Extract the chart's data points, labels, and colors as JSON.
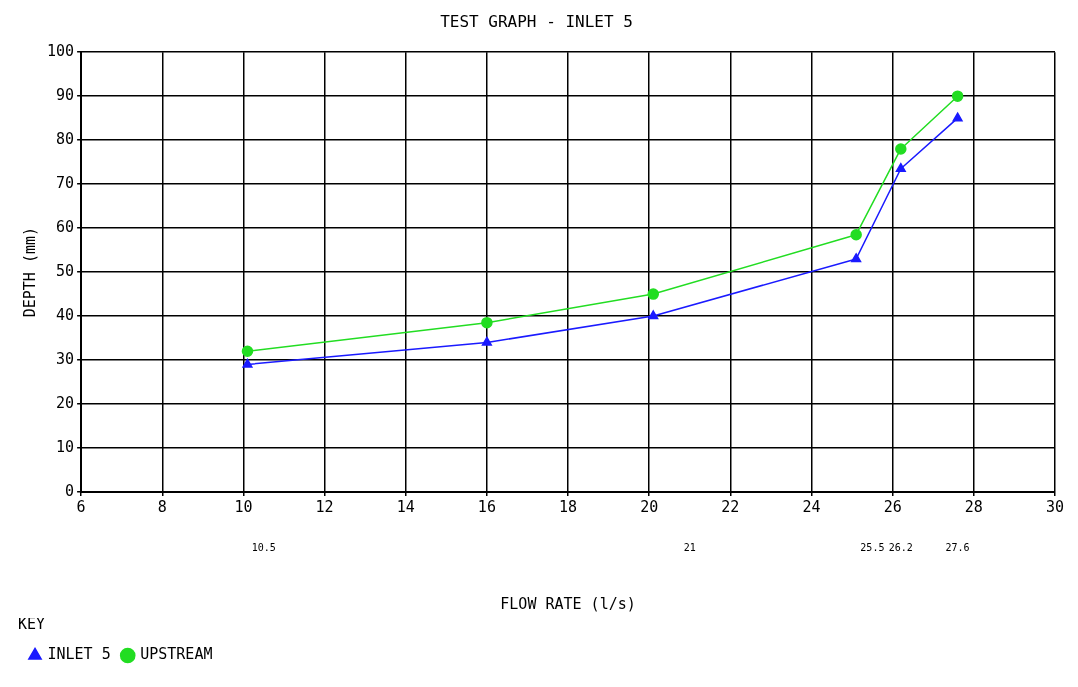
{
  "chart_data": {
    "type": "line",
    "title": "TEST GRAPH - INLET 5",
    "xlabel": "FLOW RATE (l/s)",
    "ylabel": "DEPTH (mm)",
    "legend_title": "KEY",
    "x": [
      10.1,
      16,
      20.1,
      25.1,
      26.2,
      27.6
    ],
    "series": [
      {
        "name": "INLET 5",
        "color": "#1a1aff",
        "marker": "triangle",
        "values": [
          29,
          34,
          40,
          53,
          73.5,
          85
        ]
      },
      {
        "name": "UPSTREAM",
        "color": "#22dd22",
        "marker": "circle",
        "values": [
          32,
          38.5,
          45,
          58.5,
          78,
          90
        ]
      }
    ],
    "xlim": [
      6,
      30
    ],
    "xticks": [
      6,
      8,
      10,
      12,
      14,
      16,
      18,
      20,
      22,
      24,
      26,
      28,
      30
    ],
    "x2lim": [
      6,
      30
    ],
    "x2ticks": [
      10.5,
      21,
      25.5,
      26.2,
      27.6
    ],
    "ylim": [
      0,
      100
    ],
    "yticks": [
      0,
      10,
      20,
      30,
      40,
      50,
      60,
      70,
      80,
      90,
      100
    ],
    "grid": true,
    "legend": "bottom left",
    "line_style": "solid"
  }
}
